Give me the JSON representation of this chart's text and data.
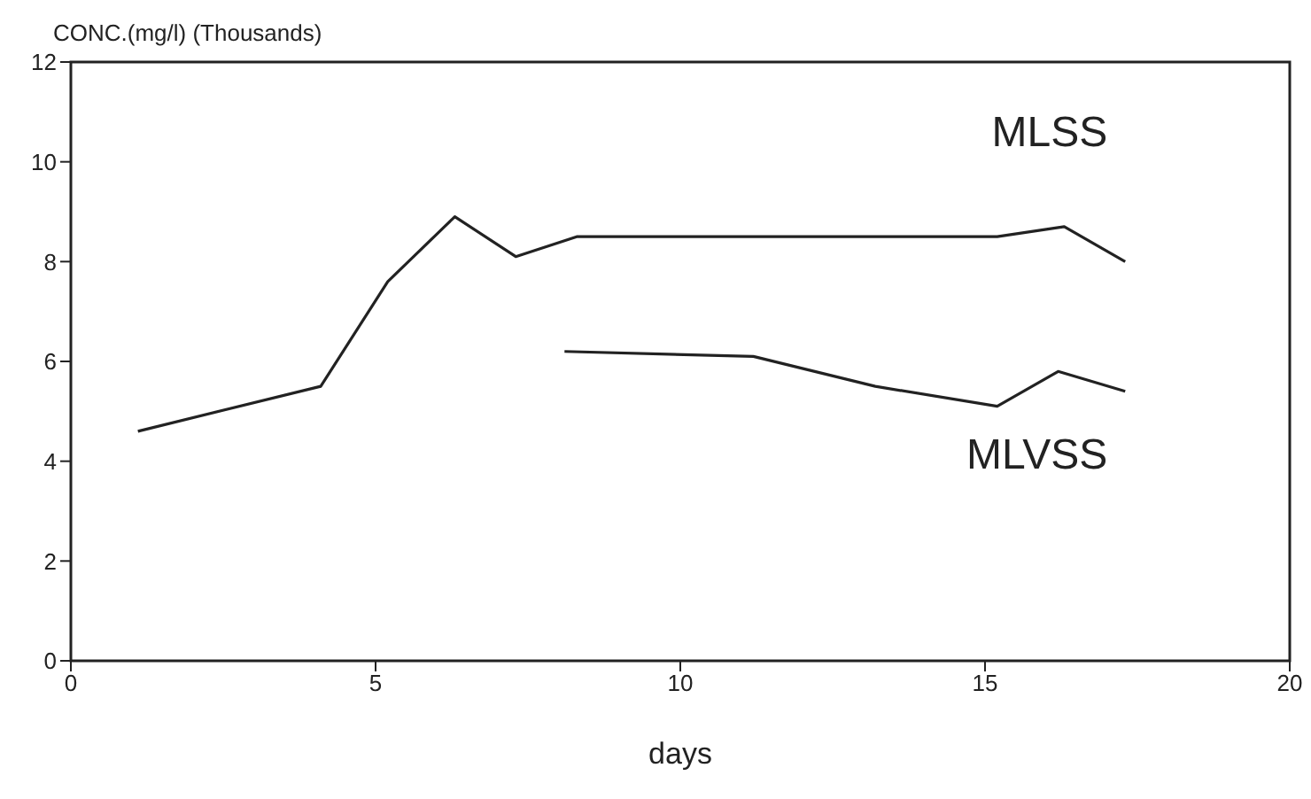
{
  "chart_data": {
    "type": "line",
    "ylabel": "CONC.(mg/l) (Thousands)",
    "xlabel": "days",
    "xlim": [
      0,
      20
    ],
    "xticks": [
      0,
      5,
      10,
      15,
      20
    ],
    "ylim": [
      0,
      12
    ],
    "yticks": [
      0,
      2,
      4,
      6,
      8,
      10,
      12
    ],
    "grid": false,
    "marker": "none",
    "line_style": "solid",
    "series": [
      {
        "name": "MLSS",
        "color": "#222222",
        "x": [
          1.1,
          4.1,
          5.2,
          6.3,
          7.3,
          8.3,
          11.3,
          13.3,
          15.2,
          16.3,
          17.3
        ],
        "values": [
          4.6,
          5.5,
          7.6,
          8.9,
          8.1,
          8.5,
          8.5,
          8.5,
          8.5,
          8.7,
          8.0
        ]
      },
      {
        "name": "MLVSS",
        "color": "#222222",
        "x": [
          8.1,
          11.2,
          13.2,
          15.2,
          16.2,
          17.3
        ],
        "values": [
          6.2,
          6.1,
          5.5,
          5.1,
          5.8,
          5.4
        ]
      }
    ]
  }
}
